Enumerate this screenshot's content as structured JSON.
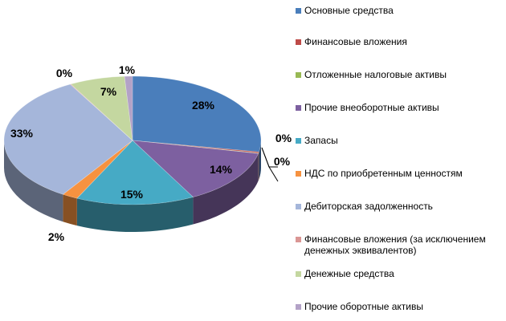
{
  "chart_data": {
    "type": "pie",
    "style": "3d",
    "legend_position": "right",
    "slices": [
      {
        "label": "Основные средства",
        "value": 28,
        "value_label": "28%",
        "color": "#4A7EBB"
      },
      {
        "label": "Финансовые вложения",
        "value": 0.3,
        "value_label": "0%",
        "color": "#BE4B48"
      },
      {
        "label": "Отложенные налоговые активы",
        "value": 0.1,
        "value_label": "0%",
        "color": "#98B954"
      },
      {
        "label": "Прочие внеоборотные активы",
        "value": 14,
        "value_label": "14%",
        "color": "#7D60A0"
      },
      {
        "label": "Запасы",
        "value": 15,
        "value_label": "15%",
        "color": "#46AAC5"
      },
      {
        "label": "НДС по приобретенным ценностям",
        "value": 2,
        "value_label": "2%",
        "color": "#F69240"
      },
      {
        "label": "Дебиторская задолженность",
        "value": 33,
        "value_label": "33%",
        "color": "#A5B6DA"
      },
      {
        "label": "Финансовые вложения (за исключением денежных эквивалентов)",
        "value": 0.1,
        "value_label": "0%",
        "color": "#DA9694"
      },
      {
        "label": "Денежные средства",
        "value": 7,
        "value_label": "7%",
        "color": "#C4D7A0"
      },
      {
        "label": "Прочие оборотные активы",
        "value": 1,
        "value_label": "1%",
        "color": "#B3A2C7"
      }
    ]
  }
}
